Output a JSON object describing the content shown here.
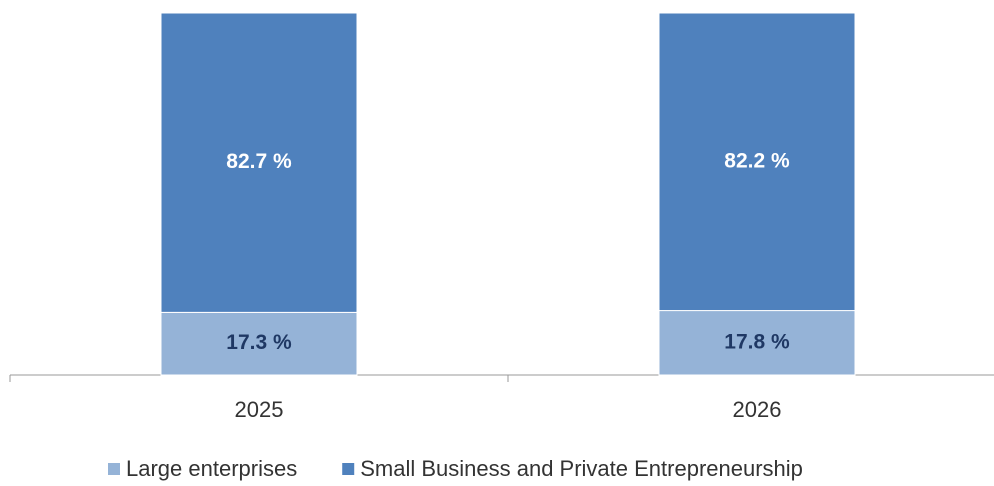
{
  "chart_data": {
    "type": "stacked_bar",
    "categories": [
      "2025",
      "2026"
    ],
    "series": [
      {
        "name": "Large enterprises",
        "color": "#95b3d7",
        "label_color": "#1f3864",
        "values": [
          17.3,
          17.8
        ],
        "value_labels": [
          "17.3 %",
          "17.8 %"
        ]
      },
      {
        "name": "Small Business and Private Entrepreneurship",
        "color": "#4f81bd",
        "label_color": "#ffffff",
        "values": [
          82.7,
          82.2
        ],
        "value_labels": [
          "82.7 %",
          "82.2 %"
        ]
      }
    ],
    "ylim": [
      0,
      100
    ],
    "legend": "bottom"
  }
}
